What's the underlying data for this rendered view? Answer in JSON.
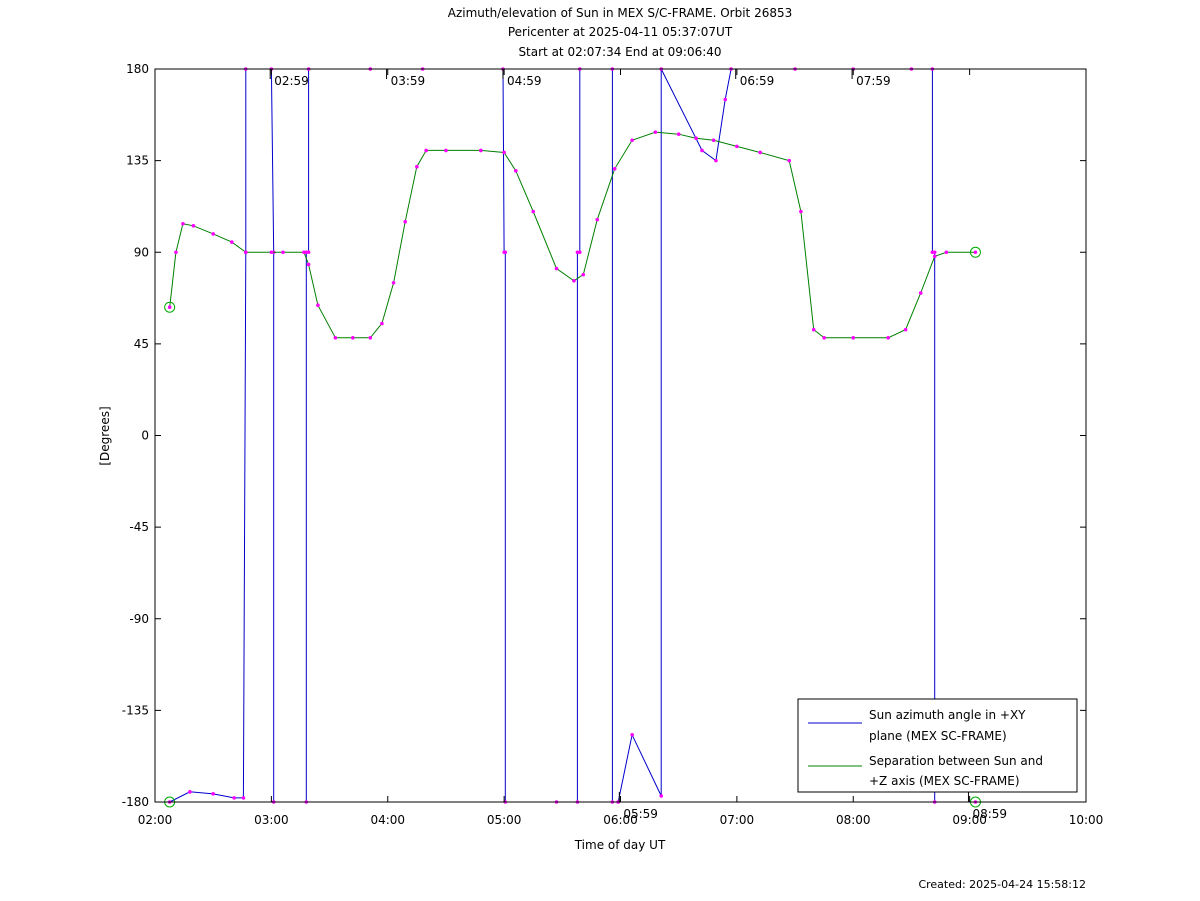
{
  "chart_data": {
    "type": "line",
    "title": "Azimuth/elevation of Sun in MEX S/C-FRAME.  Orbit 26853",
    "subtitle_1": "Pericenter at 2025-04-11 05:37:07UT",
    "subtitle_2": "Start at 02:07:34 End at 09:06:40",
    "xlabel": "Time of day UT",
    "ylabel": "[Degrees]",
    "xlim": [
      2.0,
      10.0
    ],
    "ylim": [
      -180,
      180
    ],
    "xticks": [
      {
        "v": 2,
        "label": "02:00"
      },
      {
        "v": 3,
        "label": "03:00"
      },
      {
        "v": 4,
        "label": "04:00"
      },
      {
        "v": 5,
        "label": "05:00"
      },
      {
        "v": 6,
        "label": "06:00"
      },
      {
        "v": 7,
        "label": "07:00"
      },
      {
        "v": 8,
        "label": "08:00"
      },
      {
        "v": 9,
        "label": "09:00"
      },
      {
        "v": 10,
        "label": "10:00"
      }
    ],
    "yticks": [
      {
        "v": 180,
        "label": "180"
      },
      {
        "v": 135,
        "label": "135"
      },
      {
        "v": 90,
        "label": "90"
      },
      {
        "v": 45,
        "label": "45"
      },
      {
        "v": 0,
        "label": "0"
      },
      {
        "v": -45,
        "label": "-45"
      },
      {
        "v": -90,
        "label": "-90"
      },
      {
        "v": -135,
        "label": "-135"
      },
      {
        "v": -180,
        "label": "-180"
      }
    ],
    "grid": false,
    "legend_position": "bottom-right",
    "series": [
      {
        "name": "Sun azimuth angle in +XY plane (MEX SC-FRAME)",
        "legend_lines": [
          "Sun azimuth angle in +XY",
          "plane (MEX SC-FRAME)"
        ],
        "color": "#0000cc",
        "x": [
          2.126,
          2.3,
          2.5,
          2.68,
          2.76,
          2.78,
          2.78,
          3.0,
          3.02,
          3.02,
          3.3,
          3.3,
          3.32,
          3.32,
          3.85,
          4.3,
          4.99,
          5.0,
          5.01,
          5.01,
          5.45,
          5.63,
          5.63,
          5.65,
          5.65,
          5.93,
          5.93,
          5.98,
          5.98,
          6.1,
          6.35,
          6.35,
          6.7,
          6.82,
          6.9,
          6.95,
          7.5,
          8.0,
          8.5,
          8.68,
          8.68,
          8.7,
          8.7,
          9.05
        ],
        "y": [
          -180,
          -175,
          -176,
          -178,
          -178,
          90,
          180,
          180,
          90,
          -180,
          -180,
          90,
          90,
          180,
          180,
          180,
          180,
          90,
          90,
          -180,
          -180,
          -180,
          90,
          90,
          180,
          180,
          -180,
          -180,
          -180,
          -147,
          -177,
          180,
          140,
          135,
          165,
          180,
          180,
          180,
          180,
          180,
          90,
          90,
          -180,
          -180
        ]
      },
      {
        "name": "Separation between Sun and +Z axis (MEX SC-FRAME)",
        "legend_lines": [
          "Separation between Sun and",
          "+Z axis (MEX SC-FRAME)"
        ],
        "color": "#008000",
        "x": [
          2.126,
          2.18,
          2.24,
          2.33,
          2.5,
          2.66,
          2.78,
          3.0,
          3.1,
          3.28,
          3.32,
          3.4,
          3.55,
          3.7,
          3.85,
          3.95,
          4.05,
          4.15,
          4.25,
          4.33,
          4.5,
          4.8,
          5.0,
          5.1,
          5.25,
          5.45,
          5.6,
          5.68,
          5.8,
          5.95,
          6.1,
          6.3,
          6.5,
          6.65,
          6.8,
          7.0,
          7.2,
          7.45,
          7.55,
          7.66,
          7.75,
          8.0,
          8.3,
          8.45,
          8.58,
          8.7,
          8.8,
          9.05
        ],
        "y": [
          63,
          90,
          104,
          103,
          99,
          95,
          90,
          90,
          90,
          90,
          84,
          64,
          48,
          48,
          48,
          55,
          75,
          105,
          132,
          140,
          140,
          140,
          139,
          130,
          110,
          82,
          76,
          79,
          106,
          131,
          145,
          149,
          148,
          146,
          145,
          142,
          139,
          135,
          110,
          52,
          48,
          48,
          48,
          52,
          70,
          88,
          90,
          90
        ]
      }
    ],
    "orbit_time_labels": [
      {
        "x": 2.99,
        "y": 180,
        "label": "02:59"
      },
      {
        "x": 3.99,
        "y": 180,
        "label": "03:59"
      },
      {
        "x": 4.99,
        "y": 180,
        "label": "04:59"
      },
      {
        "x": 5.99,
        "y": -180,
        "label": "05:59"
      },
      {
        "x": 6.99,
        "y": 180,
        "label": "06:59"
      },
      {
        "x": 7.99,
        "y": 180,
        "label": "07:59"
      },
      {
        "x": 8.99,
        "y": -180,
        "label": "08:59"
      }
    ]
  },
  "footer": {
    "created": "Created: 2025-04-24 15:58:12"
  }
}
